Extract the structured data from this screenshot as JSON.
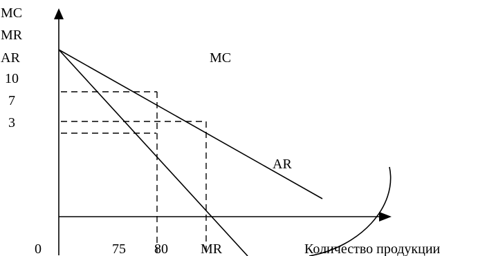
{
  "axis_labels": {
    "y_lines": [
      "MC",
      "MR",
      "AR"
    ],
    "x": "Количество продукции"
  },
  "y_ticks": [
    "10",
    "7",
    "3"
  ],
  "x_ticks": [
    "0",
    "75",
    "80"
  ],
  "curve_labels": {
    "mc": "MC",
    "mr": "MR",
    "ar": "AR"
  },
  "colors": {
    "ink": "#000000",
    "background": "#ffffff"
  }
}
